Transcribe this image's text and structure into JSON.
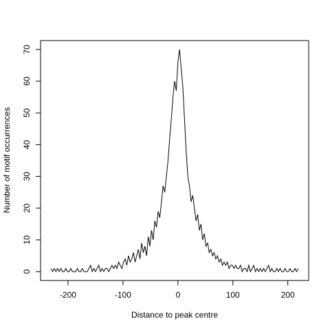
{
  "chart_data": {
    "type": "line",
    "xlabel": "Distance to peak centre",
    "ylabel": "Number of motif occurrences",
    "color": "#000000",
    "x": [
      -231,
      -228,
      -225,
      -222,
      -219,
      -216,
      -213,
      -210,
      -207,
      -204,
      -201,
      -198,
      -195,
      -192,
      -189,
      -186,
      -183,
      -180,
      -177,
      -174,
      -171,
      -168,
      -165,
      -162,
      -159,
      -156,
      -153,
      -150,
      -147,
      -144,
      -141,
      -138,
      -135,
      -132,
      -129,
      -126,
      -123,
      -120,
      -117,
      -114,
      -111,
      -108,
      -105,
      -102,
      -99,
      -96,
      -93,
      -90,
      -87,
      -84,
      -81,
      -78,
      -75,
      -72,
      -69,
      -66,
      -63,
      -60,
      -57,
      -54,
      -51,
      -48,
      -45,
      -42,
      -39,
      -36,
      -33,
      -30,
      -27,
      -24,
      -21,
      -18,
      -15,
      -12,
      -9,
      -6,
      -3,
      0,
      3,
      6,
      9,
      12,
      15,
      18,
      21,
      24,
      27,
      30,
      33,
      36,
      39,
      42,
      45,
      48,
      51,
      54,
      57,
      60,
      63,
      66,
      69,
      72,
      75,
      78,
      81,
      84,
      87,
      90,
      93,
      96,
      99,
      102,
      105,
      108,
      111,
      114,
      117,
      120,
      123,
      126,
      129,
      132,
      135,
      138,
      141,
      144,
      147,
      150,
      153,
      156,
      159,
      162,
      165,
      168,
      171,
      174,
      177,
      180,
      183,
      186,
      189,
      192,
      195,
      198,
      201,
      204,
      207,
      210,
      213,
      216,
      219
    ],
    "values": [
      1,
      0,
      1,
      0,
      1,
      0,
      1,
      0,
      0,
      1,
      0,
      0,
      1,
      0,
      0,
      0,
      1,
      0,
      0,
      1,
      0,
      0,
      0,
      1,
      2,
      0,
      1,
      0,
      1,
      2,
      0,
      1,
      0,
      1,
      1,
      0,
      1,
      2,
      1,
      2,
      1,
      3,
      2,
      1,
      3,
      4,
      2,
      5,
      3,
      4,
      6,
      3,
      5,
      7,
      4,
      9,
      6,
      8,
      5,
      11,
      8,
      13,
      10,
      16,
      14,
      19,
      17,
      22,
      27,
      25,
      30,
      35,
      42,
      48,
      55,
      60,
      57,
      66,
      70,
      64,
      58,
      48,
      38,
      30,
      27,
      22,
      24,
      20,
      16,
      18,
      13,
      15,
      10,
      12,
      8,
      9,
      6,
      7,
      5,
      6,
      4,
      5,
      3,
      4,
      2,
      3,
      2,
      3,
      1,
      2,
      2,
      1,
      2,
      1,
      1,
      2,
      0,
      1,
      1,
      0,
      2,
      0,
      1,
      2,
      0,
      1,
      0,
      1,
      0,
      1,
      0,
      1,
      2,
      0,
      1,
      0,
      0,
      1,
      0,
      1,
      0,
      0,
      1,
      0,
      0,
      1,
      0,
      0,
      1,
      0,
      1
    ],
    "xlim": [
      -250,
      238
    ],
    "ylim": [
      -2.8,
      72.8
    ],
    "xticks": [
      -200,
      -100,
      0,
      100,
      200
    ],
    "yticks": [
      0,
      10,
      20,
      30,
      40,
      50,
      60,
      70
    ]
  }
}
